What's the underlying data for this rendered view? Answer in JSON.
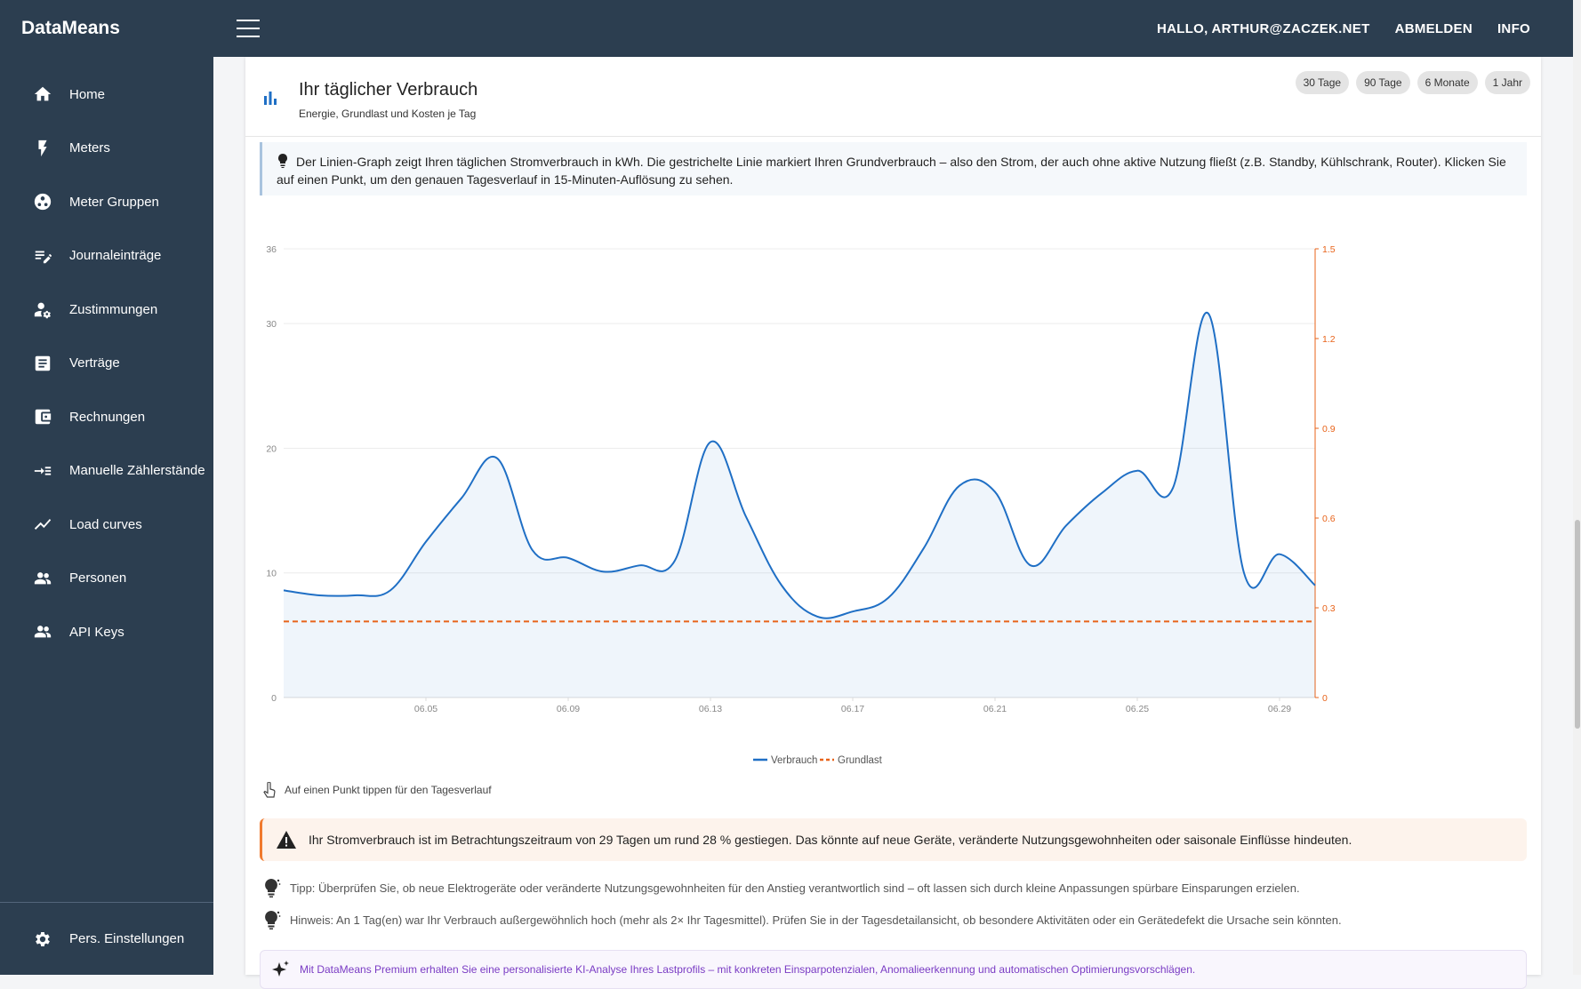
{
  "app": {
    "name": "DataMeans"
  },
  "topbar": {
    "greeting": "HALLO, ARTHUR@ZACZEK.NET",
    "logout": "ABMELDEN",
    "info": "INFO"
  },
  "sidebar": {
    "items": [
      {
        "label": "Home",
        "icon": "home-icon"
      },
      {
        "label": "Meters",
        "icon": "bolt-icon"
      },
      {
        "label": "Meter Gruppen",
        "icon": "group-icon"
      },
      {
        "label": "Journaleinträge",
        "icon": "edit-note-icon"
      },
      {
        "label": "Zustimmungen",
        "icon": "user-settings-icon"
      },
      {
        "label": "Verträge",
        "icon": "document-icon"
      },
      {
        "label": "Rechnungen",
        "icon": "wallet-icon"
      },
      {
        "label": "Manuelle Zählerstände",
        "icon": "input-icon"
      },
      {
        "label": "Load curves",
        "icon": "trend-icon"
      },
      {
        "label": "Personen",
        "icon": "people-icon"
      },
      {
        "label": "API Keys",
        "icon": "people-icon"
      }
    ],
    "bottom": {
      "label": "Pers. Einstellungen",
      "icon": "gear-icon"
    }
  },
  "card": {
    "title": "Ihr täglicher Verbrauch",
    "subtitle": "Energie, Grundlast und Kosten je Tag",
    "ranges": [
      "30 Tage",
      "90 Tage",
      "6 Monate",
      "1 Jahr"
    ]
  },
  "info_text": "Der Linien-Graph zeigt Ihren täglichen Stromverbrauch in kWh. Die gestrichelte Linie markiert Ihren Grundverbrauch – also den Strom, der auch ohne aktive Nutzung fließt (z.B. Standby, Kühlschrank, Router). Klicken Sie auf einen Punkt, um den genauen Tagesverlauf in 15-Minuten-Auflösung zu sehen.",
  "chart_data": {
    "type": "line",
    "x": [
      "06.01",
      "06.02",
      "06.03",
      "06.04",
      "06.05",
      "06.06",
      "06.07",
      "06.08",
      "06.09",
      "06.10",
      "06.11",
      "06.12",
      "06.13",
      "06.14",
      "06.15",
      "06.16",
      "06.17",
      "06.18",
      "06.19",
      "06.20",
      "06.21",
      "06.22",
      "06.23",
      "06.24",
      "06.25",
      "06.26",
      "06.27",
      "06.28",
      "06.29",
      "06.30"
    ],
    "x_ticks": [
      "06.05",
      "06.09",
      "06.13",
      "06.17",
      "06.21",
      "06.25",
      "06.29"
    ],
    "series": [
      {
        "name": "Verbrauch",
        "color": "#1f6fc5",
        "axis": "left",
        "values": [
          8.6,
          8.2,
          8.2,
          8.6,
          12.5,
          16.0,
          19.2,
          11.8,
          11.2,
          10.1,
          10.6,
          11.0,
          20.5,
          14.5,
          9.0,
          6.5,
          6.9,
          8.0,
          12.0,
          17.0,
          16.5,
          10.6,
          13.8,
          16.4,
          18.2,
          16.8,
          30.8,
          10.0,
          11.5,
          9.0
        ]
      },
      {
        "name": "Grundlast",
        "color": "#e8631a",
        "axis": "left",
        "dashed": true,
        "values": [
          6.1,
          6.1,
          6.1,
          6.1,
          6.1,
          6.1,
          6.1,
          6.1,
          6.1,
          6.1,
          6.1,
          6.1,
          6.1,
          6.1,
          6.1,
          6.1,
          6.1,
          6.1,
          6.1,
          6.1,
          6.1,
          6.1,
          6.1,
          6.1,
          6.1,
          6.1,
          6.1,
          6.1,
          6.1,
          6.1
        ]
      }
    ],
    "y_left": {
      "ticks": [
        0,
        10,
        20,
        30,
        36
      ],
      "ylim": [
        0,
        36
      ]
    },
    "y_right": {
      "ticks": [
        "0",
        "0.3",
        "0.6",
        "0.9",
        "1.2",
        "1.5"
      ],
      "ylim": [
        0,
        1.5
      ],
      "color": "#e8631a"
    },
    "legend": "bottom-center"
  },
  "hint": "Auf einen Punkt tippen für den Tagesverlauf",
  "alert": "Ihr Stromverbrauch ist im Betrachtungszeitraum von 29 Tagen um rund 28 % gestiegen. Das könnte auf neue Geräte, veränderte Nutzungsgewohnheiten oder saisonale Einflüsse hindeuten.",
  "tips": [
    "Tipp: Überprüfen Sie, ob neue Elektrogeräte oder veränderte Nutzungsgewohnheiten für den Anstieg verantwortlich sind – oft lassen sich durch kleine Anpassungen spürbare Einsparungen erzielen.",
    "Hinweis: An 1 Tag(en) war Ihr Verbrauch außergewöhnlich hoch (mehr als 2× Ihr Tagesmittel). Prüfen Sie in der Tagesdetailansicht, ob besondere Aktivitäten oder ein Gerätedefekt die Ursache sein könnten."
  ],
  "premium": "Mit DataMeans Premium erhalten Sie eine personalisierte KI-Analyse Ihres Lastprofils – mit konkreten Einsparpotenzialen, Anomalieerkennung und automatischen Optimierungsvorschlägen."
}
